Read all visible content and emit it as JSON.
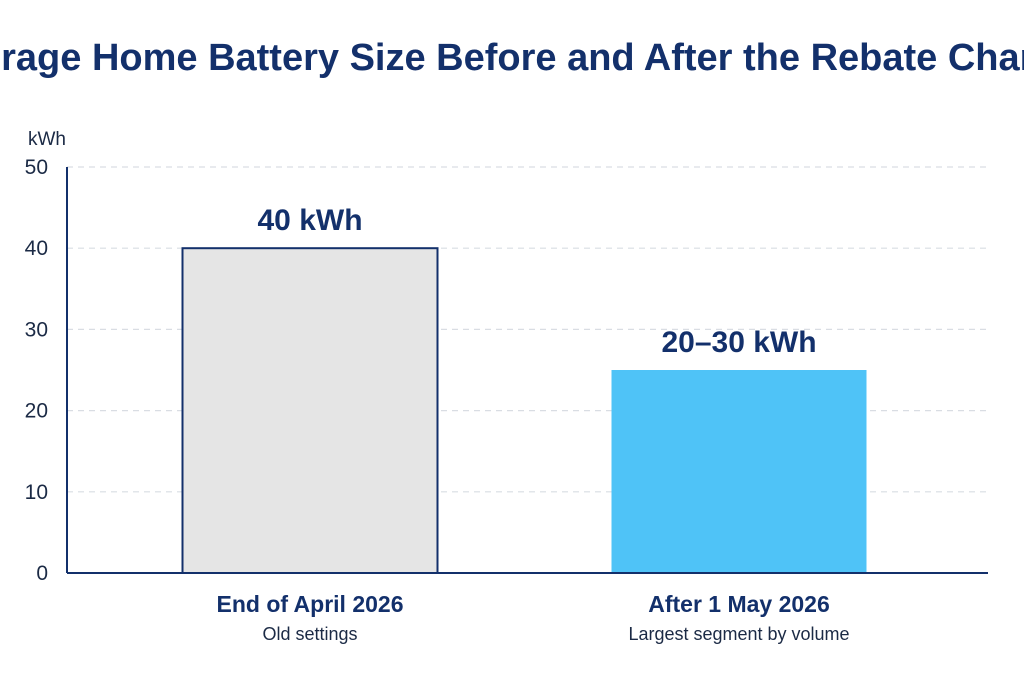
{
  "chart_data": {
    "type": "bar",
    "title": "Average Home Battery Size Before and After the Rebate Change",
    "ylabel": "kWh",
    "xlabel": "",
    "ylim": [
      0,
      50
    ],
    "yticks": [
      0,
      10,
      20,
      30,
      40,
      50
    ],
    "grid": true,
    "categories": [
      "End of April 2026",
      "After 1 May 2026"
    ],
    "category_subtitles": [
      "Old settings",
      "Largest segment by volume"
    ],
    "values": [
      40,
      25
    ],
    "value_labels": [
      "40 kWh",
      "20–30 kWh"
    ],
    "bar_colors": [
      "#e5e5e5",
      "#4fc3f7"
    ],
    "bar_outlines": [
      "#13306b",
      "none"
    ]
  }
}
